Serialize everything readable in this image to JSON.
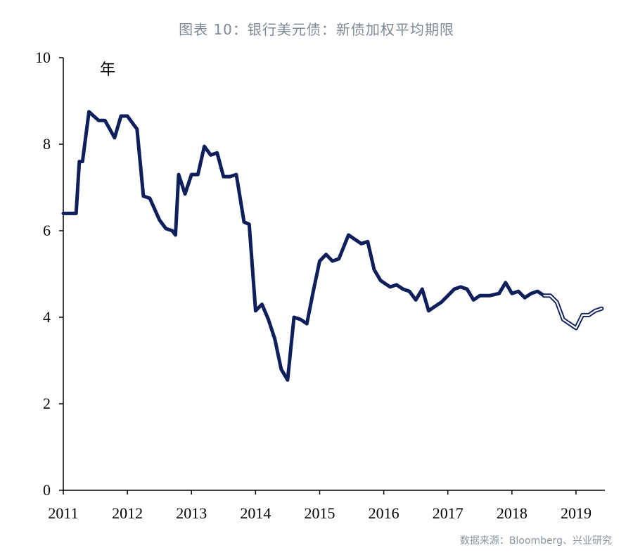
{
  "title": "图表 10：银行美元债：新债加权平均期限",
  "source": "数据来源：Bloomberg、兴业研究",
  "chart_data": {
    "type": "line",
    "title": "图表 10：银行美元债：新债加权平均期限",
    "unit_label": "年",
    "xlabel": "",
    "ylabel": "",
    "xlim": [
      2011.0,
      2019.45
    ],
    "ylim": [
      0,
      10
    ],
    "y_ticks": [
      0,
      2,
      4,
      6,
      8,
      10
    ],
    "x_ticks": [
      2011,
      2012,
      2013,
      2014,
      2015,
      2016,
      2017,
      2018,
      2019
    ],
    "x_tick_labels": [
      "2011",
      "2012",
      "2013",
      "2014",
      "2015",
      "2016",
      "2017",
      "2018",
      "2019"
    ],
    "grid": false,
    "legend": "none",
    "colors": {
      "line": "#0f1f5c",
      "fill": "#ffffff"
    },
    "series": [
      {
        "values_x": [
          2011.0,
          2011.2,
          2011.25,
          2011.3,
          2011.4,
          2011.55,
          2011.65,
          2011.8,
          2011.9,
          2012.0,
          2012.15,
          2012.25,
          2012.35,
          2012.5,
          2012.6,
          2012.7,
          2012.75,
          2012.8,
          2012.9,
          2013.0,
          2013.1,
          2013.2,
          2013.3,
          2013.4,
          2013.5,
          2013.6,
          2013.7,
          2013.82,
          2013.9,
          2014.0,
          2014.1,
          2014.2,
          2014.3,
          2014.4,
          2014.5,
          2014.6,
          2014.7,
          2014.8,
          2014.9,
          2015.0,
          2015.1,
          2015.2,
          2015.3,
          2015.45,
          2015.55,
          2015.65,
          2015.75,
          2015.85,
          2015.95,
          2016.0,
          2016.1,
          2016.2,
          2016.3,
          2016.4,
          2016.5,
          2016.6,
          2016.7,
          2016.8,
          2016.9,
          2017.0,
          2017.1,
          2017.2,
          2017.3,
          2017.4,
          2017.5,
          2017.65,
          2017.8,
          2017.9,
          2018.0,
          2018.1,
          2018.2,
          2018.3,
          2018.4,
          2018.5,
          2018.6,
          2018.7,
          2018.8,
          2018.9,
          2019.0,
          2019.1,
          2019.2,
          2019.3,
          2019.4
        ],
        "values": [
          6.4,
          6.4,
          7.6,
          7.6,
          8.75,
          8.55,
          8.55,
          8.15,
          8.65,
          8.65,
          8.35,
          6.8,
          6.75,
          6.25,
          6.05,
          6.0,
          5.9,
          7.3,
          6.85,
          7.3,
          7.3,
          7.95,
          7.75,
          7.8,
          7.25,
          7.25,
          7.3,
          6.2,
          6.15,
          4.15,
          4.3,
          3.95,
          3.5,
          2.8,
          2.55,
          4.0,
          3.95,
          3.85,
          4.6,
          5.3,
          5.45,
          5.3,
          5.35,
          5.9,
          5.8,
          5.7,
          5.75,
          5.1,
          4.85,
          4.8,
          4.7,
          4.75,
          4.65,
          4.6,
          4.4,
          4.65,
          4.15,
          4.25,
          4.35,
          4.5,
          4.65,
          4.7,
          4.65,
          4.4,
          4.5,
          4.5,
          4.55,
          4.8,
          4.55,
          4.6,
          4.45,
          4.55,
          4.6,
          4.5,
          4.5,
          4.35,
          3.95,
          3.85,
          3.75,
          4.05,
          4.05,
          4.15,
          4.2
        ],
        "hollow_from_x": 2018.5
      }
    ]
  }
}
